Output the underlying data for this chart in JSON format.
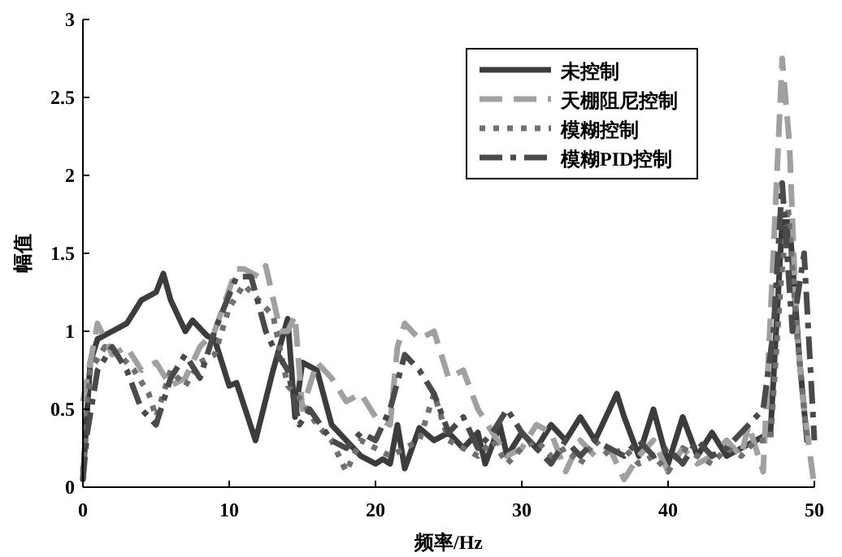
{
  "chart_data": {
    "type": "line",
    "xlabel": "频率/Hz",
    "ylabel": "幅值",
    "xlim": [
      0,
      50
    ],
    "ylim": [
      0,
      3
    ],
    "xticks": [
      0,
      10,
      20,
      30,
      40,
      50
    ],
    "yticks": [
      0,
      0.5,
      1,
      1.5,
      2,
      2.5,
      3
    ],
    "legend": "top right",
    "series": [
      {
        "name": "未控制",
        "color": "#3c3c3c",
        "line_style": "solid",
        "x": [
          0,
          0.5,
          1,
          2,
          3,
          4,
          5,
          5.5,
          6,
          7,
          7.5,
          8.5,
          9,
          9.5,
          10,
          10.5,
          11.8,
          13,
          14,
          14.5,
          15,
          16,
          17,
          18,
          19,
          20,
          20.5,
          21,
          21.5,
          22,
          23,
          24,
          25,
          26,
          27,
          27.5,
          28.5,
          29,
          30,
          31,
          32,
          33,
          34,
          35,
          36,
          36.5,
          37,
          38,
          39,
          40,
          41,
          42,
          43,
          44,
          45,
          46,
          47,
          47.8,
          48.3,
          49,
          49.5
        ],
        "values": [
          0.05,
          0.8,
          0.95,
          1.0,
          1.05,
          1.2,
          1.25,
          1.37,
          1.2,
          1.0,
          1.07,
          0.97,
          0.95,
          0.8,
          0.65,
          0.67,
          0.3,
          0.75,
          1.08,
          0.45,
          0.8,
          0.75,
          0.4,
          0.3,
          0.2,
          0.15,
          0.18,
          0.15,
          0.4,
          0.12,
          0.38,
          0.3,
          0.35,
          0.25,
          0.35,
          0.15,
          0.4,
          0.2,
          0.35,
          0.25,
          0.4,
          0.3,
          0.45,
          0.3,
          0.5,
          0.6,
          0.45,
          0.2,
          0.5,
          0.15,
          0.45,
          0.2,
          0.35,
          0.2,
          0.25,
          0.3,
          0.35,
          1.7,
          1.7,
          0.8,
          0.3
        ]
      },
      {
        "name": "天棚阻尼控制",
        "color": "#a0a0a0",
        "line_style": "dashed",
        "x": [
          0,
          1,
          2,
          3,
          4,
          5,
          6,
          7,
          8,
          9,
          10.5,
          11,
          12,
          12.5,
          13.5,
          14,
          14.5,
          15,
          16,
          17,
          18,
          19,
          20,
          21,
          21.5,
          22,
          23,
          24,
          25,
          26,
          27,
          28,
          29,
          30,
          31,
          32,
          33,
          34,
          35,
          36,
          37,
          38,
          39,
          40,
          41,
          42,
          43,
          44,
          45,
          45.5,
          46.5,
          47.2,
          47.8,
          48.3,
          48.8,
          49.3,
          50
        ],
        "values": [
          0.55,
          1.05,
          0.85,
          0.9,
          0.75,
          0.8,
          0.65,
          0.7,
          0.9,
          1.0,
          1.4,
          1.4,
          1.35,
          1.42,
          1.0,
          1.0,
          1.1,
          0.5,
          0.8,
          0.7,
          0.55,
          0.6,
          0.45,
          0.4,
          0.9,
          1.05,
          0.95,
          1.0,
          0.7,
          0.75,
          0.5,
          0.35,
          0.2,
          0.25,
          0.4,
          0.35,
          0.1,
          0.3,
          0.2,
          0.25,
          0.05,
          0.2,
          0.3,
          0.1,
          0.25,
          0.15,
          0.2,
          0.3,
          0.2,
          0.4,
          0.1,
          1.5,
          2.75,
          2.2,
          1.0,
          0.5,
          0.0
        ]
      },
      {
        "name": "模糊控制",
        "color": "#707070",
        "line_style": "dotted",
        "x": [
          0,
          0.5,
          1.5,
          2.5,
          3.5,
          4.5,
          5,
          6,
          7,
          8,
          9,
          10,
          11,
          12,
          13,
          14,
          15,
          16,
          17,
          18,
          19,
          20,
          21,
          22,
          23,
          24,
          25,
          26,
          27,
          28,
          29,
          30,
          31,
          32,
          33,
          34,
          35,
          36,
          37,
          38,
          39,
          40,
          41,
          42,
          43,
          44,
          45,
          46,
          47,
          47.7,
          48.2,
          48.8,
          49.5
        ],
        "values": [
          0.1,
          0.75,
          0.9,
          0.85,
          0.75,
          0.6,
          0.45,
          0.75,
          0.65,
          0.8,
          0.85,
          1.15,
          1.3,
          1.2,
          1.1,
          0.65,
          0.55,
          0.4,
          0.3,
          0.1,
          0.3,
          0.25,
          0.2,
          0.25,
          0.3,
          0.6,
          0.3,
          0.25,
          0.2,
          0.3,
          0.15,
          0.25,
          0.3,
          0.2,
          0.25,
          0.15,
          0.3,
          0.2,
          0.25,
          0.15,
          0.2,
          0.1,
          0.25,
          0.2,
          0.15,
          0.25,
          0.2,
          0.3,
          0.3,
          1.3,
          1.8,
          1.0,
          0.3
        ]
      },
      {
        "name": "模糊PID控制",
        "color": "#4a4a4a",
        "line_style": "dashdot",
        "x": [
          0,
          0.3,
          1,
          2,
          3,
          4,
          5,
          6,
          7,
          8,
          9,
          10.5,
          11.5,
          12.5,
          13,
          14,
          14.8,
          15.5,
          17,
          18,
          19,
          20,
          21,
          22,
          23,
          24,
          25,
          26,
          27,
          28,
          29,
          30,
          31,
          32,
          33,
          34,
          35,
          36,
          37,
          38,
          39,
          40,
          41,
          42,
          43,
          44,
          45,
          46.5,
          47.2,
          47.8,
          48.5,
          49.3,
          50
        ],
        "values": [
          0.05,
          0.35,
          0.75,
          0.9,
          0.75,
          0.5,
          0.4,
          0.7,
          0.85,
          0.7,
          1.0,
          1.35,
          1.35,
          1.0,
          0.9,
          0.75,
          0.4,
          0.5,
          0.3,
          0.25,
          0.35,
          0.3,
          0.5,
          0.85,
          0.75,
          0.6,
          0.35,
          0.45,
          0.25,
          0.35,
          0.5,
          0.35,
          0.25,
          0.15,
          0.3,
          0.2,
          0.3,
          0.25,
          0.2,
          0.3,
          0.2,
          0.25,
          0.15,
          0.3,
          0.2,
          0.25,
          0.35,
          0.5,
          1.0,
          1.95,
          1.0,
          1.5,
          0.3
        ]
      }
    ]
  }
}
